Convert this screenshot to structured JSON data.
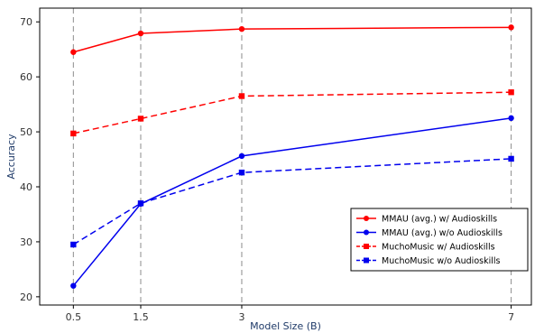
{
  "chart_data": {
    "type": "line",
    "title": "",
    "xlabel": "Model Size (B)",
    "ylabel": "Accuracy",
    "x": [
      0.5,
      1.5,
      3,
      7
    ],
    "x_tick_labels": [
      "0.5",
      "1.5",
      "3",
      "7"
    ],
    "y_ticks": [
      20,
      30,
      40,
      50,
      60,
      70
    ],
    "xlim": [
      0.0,
      7.3
    ],
    "ylim": [
      18.5,
      72.5
    ],
    "grid": "vertical dashed",
    "legend_position": "bottom-right",
    "series": [
      {
        "name": "MMAU (avg.) w/ Audioskills",
        "values": [
          64.5,
          67.9,
          68.7,
          69.0
        ],
        "color": "#ff0000",
        "marker": "circle",
        "dash": "solid"
      },
      {
        "name": "MMAU (avg.) w/o Audioskills",
        "values": [
          22.0,
          36.9,
          45.6,
          52.5
        ],
        "color": "#0000ee",
        "marker": "circle",
        "dash": "solid"
      },
      {
        "name": "MuchoMusic w/ Audioskills",
        "values": [
          49.7,
          52.4,
          56.5,
          57.2
        ],
        "color": "#ff0000",
        "marker": "square",
        "dash": "dashed"
      },
      {
        "name": "MuchoMusic w/o Audioskills",
        "values": [
          29.5,
          37.0,
          42.6,
          45.1
        ],
        "color": "#0000ee",
        "marker": "square",
        "dash": "dashed"
      }
    ]
  }
}
